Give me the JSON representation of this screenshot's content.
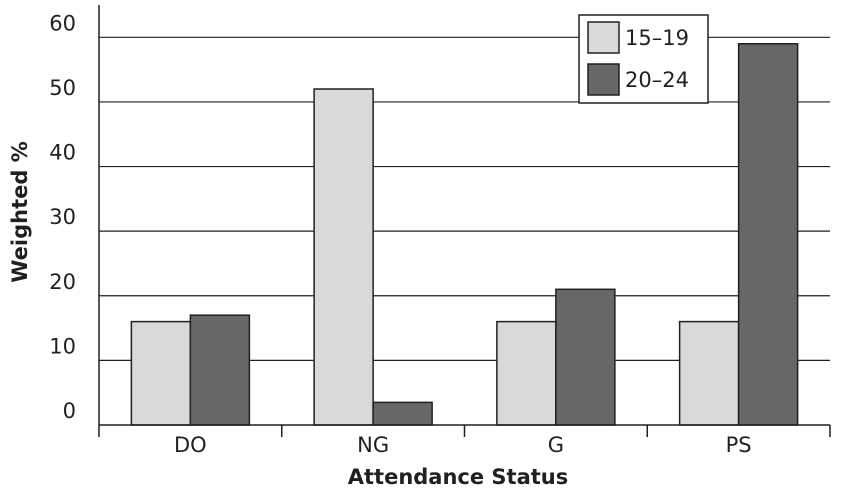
{
  "chart_data": {
    "type": "bar",
    "title": "",
    "xlabel": "Attendance Status",
    "ylabel": "Weighted %",
    "categories": [
      "DO",
      "NG",
      "G",
      "PS"
    ],
    "series": [
      {
        "name": "15–19",
        "values": [
          16,
          52,
          16,
          16
        ],
        "color": "#d9d9d9"
      },
      {
        "name": "20–24",
        "values": [
          17,
          3.5,
          21,
          59
        ],
        "color": "#666766"
      }
    ],
    "ylim": [
      0,
      65
    ],
    "yticks": [
      0,
      10,
      20,
      30,
      40,
      50,
      60
    ],
    "grid": true,
    "legend_position": "top-right"
  }
}
